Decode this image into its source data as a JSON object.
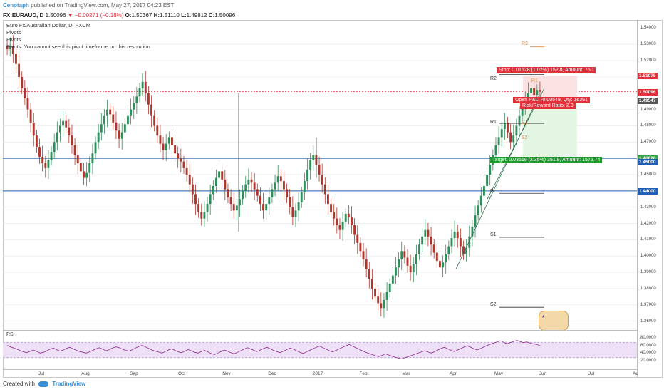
{
  "header": {
    "author": "Cenotaph",
    "published": "published on TradingView.com, May 27, 2017 04:23 EST"
  },
  "quote": {
    "symbol": "FX:EURAUD, D",
    "last": "1.50096",
    "change": "▼ −0.00271 (−0.18%)",
    "open_label": "O:",
    "open": "1.50367",
    "high_label": "H:",
    "high": "1.51110",
    "low_label": "L:",
    "low": "1.49812",
    "close_label": "C:",
    "close": "1.50096"
  },
  "chart_info": {
    "title": "Euro Fx/Australian Dollar, D, FXCM",
    "indicator1": "Pivots",
    "indicator2": "Pivots",
    "warning": "Pivots: You cannot see this pivot timeframe on this resolution"
  },
  "price_axis": {
    "ticks": [
      "1.54000",
      "1.53000",
      "1.52000",
      "1.51000",
      "1.50000",
      "1.49000",
      "1.48000",
      "1.47000",
      "1.45000",
      "1.43000",
      "1.42000",
      "1.41000",
      "1.40000",
      "1.39000",
      "1.38000",
      "1.37000",
      "1.36000"
    ],
    "rsi_ticks": [
      "80.0000",
      "60.0000",
      "40.0000",
      "20.0000"
    ],
    "tags": [
      {
        "label": "1.51075",
        "color": "#e0313b"
      },
      {
        "label": "1.50096",
        "color": "#e0313b"
      },
      {
        "label": "1.49547",
        "color": "#555555"
      },
      {
        "label": "1.46028",
        "color": "#2ea043"
      },
      {
        "label": "1.46000",
        "color": "#1f5fb5"
      },
      {
        "label": "1.44000",
        "color": "#1f5fb5"
      }
    ]
  },
  "position_tool": {
    "stop_text": "Stop: 0.01528 (1.02%) 152.8, Amount: 750",
    "open_text": "Open P&L: -0.00549, Qty: 16361",
    "rr_text": "Risk/Reward Ratio: 2.3",
    "target_text": "Target: 0.03519 (2.35%) 351.9, Amount: 1575.74",
    "stop_color": "#e0313b",
    "target_color": "#1e9a2e"
  },
  "pivots": {
    "monthly": [
      "R2",
      "R1",
      "P",
      "S1",
      "S2"
    ],
    "weekly": [
      "R3",
      "R1",
      "S1",
      "S2"
    ]
  },
  "rsi": {
    "label": "RSI"
  },
  "time_axis": {
    "labels": [
      "Jul",
      "Aug",
      "Sep",
      "Oct",
      "Nov",
      "Dec",
      "2017",
      "Feb",
      "Mar",
      "Apr",
      "May",
      "Jun",
      "Jul",
      "Au"
    ]
  },
  "footer": {
    "created_with": "Created with",
    "brand": "TradingView"
  },
  "colors": {
    "up_candle": "#2f8f5b",
    "down_candle": "#b0352c",
    "hline": "#1f5fb5",
    "rsi_line": "#8b2a8b",
    "rsi_band": "#ede0f7"
  },
  "chart_data": {
    "type": "candlestick",
    "instrument": "FX:EURAUD",
    "resolution": "D",
    "ylim": [
      1.355,
      1.545
    ],
    "horizontal_levels": [
      1.46,
      1.44,
      1.50096
    ],
    "closes": [
      1.527,
      1.529,
      1.524,
      1.518,
      1.51,
      1.503,
      1.497,
      1.49,
      1.482,
      1.474,
      1.467,
      1.461,
      1.457,
      1.454,
      1.459,
      1.464,
      1.47,
      1.476,
      1.48,
      1.483,
      1.479,
      1.474,
      1.468,
      1.462,
      1.457,
      1.452,
      1.448,
      1.451,
      1.457,
      1.463,
      1.47,
      1.476,
      1.481,
      1.486,
      1.49,
      1.487,
      1.482,
      1.477,
      1.472,
      1.476,
      1.481,
      1.486,
      1.49,
      1.494,
      1.498,
      1.503,
      1.507,
      1.5,
      1.493,
      1.486,
      1.48,
      1.474,
      1.469,
      1.465,
      1.469,
      1.473,
      1.468,
      1.463,
      1.46,
      1.458,
      1.454,
      1.45,
      1.444,
      1.438,
      1.432,
      1.427,
      1.423,
      1.427,
      1.432,
      1.438,
      1.443,
      1.448,
      1.452,
      1.447,
      1.441,
      1.436,
      1.432,
      1.428,
      1.431,
      1.435,
      1.44,
      1.444,
      1.447,
      1.445,
      1.441,
      1.437,
      1.432,
      1.428,
      1.432,
      1.436,
      1.441,
      1.445,
      1.449,
      1.446,
      1.441,
      1.436,
      1.43,
      1.424,
      1.428,
      1.433,
      1.439,
      1.446,
      1.453,
      1.459,
      1.462,
      1.456,
      1.45,
      1.444,
      1.438,
      1.432,
      1.427,
      1.423,
      1.419,
      1.416,
      1.421,
      1.426,
      1.424,
      1.419,
      1.413,
      1.408,
      1.403,
      1.398,
      1.392,
      1.386,
      1.38,
      1.375,
      1.371,
      1.368,
      1.373,
      1.378,
      1.383,
      1.388,
      1.393,
      1.398,
      1.403,
      1.399,
      1.394,
      1.39,
      1.395,
      1.401,
      1.407,
      1.412,
      1.416,
      1.412,
      1.407,
      1.402,
      1.397,
      1.393,
      1.396,
      1.401,
      1.406,
      1.411,
      1.415,
      1.411,
      1.406,
      1.401,
      1.405,
      1.412,
      1.418,
      1.425,
      1.431,
      1.437,
      1.443,
      1.45,
      1.456,
      1.462,
      1.468,
      1.473,
      1.478,
      1.482,
      1.476,
      1.47,
      1.474,
      1.48,
      1.486,
      1.491,
      1.496,
      1.5,
      1.503,
      1.499,
      1.502,
      1.501
    ],
    "rsi": [
      62,
      58,
      55,
      52,
      48,
      45,
      43,
      47,
      50,
      46,
      42,
      44,
      48,
      52,
      55,
      51,
      47,
      50,
      54,
      57,
      53,
      49,
      46,
      44,
      42,
      45,
      49,
      53,
      56,
      52,
      48,
      51,
      55,
      58,
      56,
      52,
      49,
      47,
      51,
      55,
      59,
      62,
      58,
      54,
      50,
      47,
      45,
      42,
      46,
      50,
      53,
      49,
      45,
      43,
      47,
      51,
      48,
      44,
      42,
      46,
      49,
      45,
      41,
      38,
      42,
      46,
      50,
      47,
      43,
      40,
      44,
      48,
      52,
      56,
      53,
      49,
      46,
      50,
      54,
      57,
      53,
      49,
      46,
      43,
      47,
      51,
      55,
      52,
      48,
      44,
      41,
      45,
      49,
      53,
      57,
      60,
      56,
      52,
      48,
      45,
      49,
      53,
      57,
      61,
      64,
      60,
      56,
      52,
      48,
      44,
      41,
      38,
      35,
      33,
      36,
      40,
      37,
      34,
      31,
      29,
      27,
      30,
      33,
      36,
      39,
      42,
      45,
      48,
      45,
      42,
      46,
      50,
      54,
      57,
      53,
      49,
      46,
      50,
      54,
      58,
      61,
      57,
      53,
      50,
      54,
      58,
      62,
      65,
      68,
      71,
      74,
      70,
      66,
      69,
      72,
      75,
      72,
      69,
      71,
      68,
      66,
      64,
      62
    ],
    "pivot_levels": {
      "R2": 1.5115,
      "R1": 1.4815,
      "P": 1.4385,
      "S1": 1.4115,
      "S2": 1.3685,
      "R3_weekly": 1.5285
    }
  }
}
